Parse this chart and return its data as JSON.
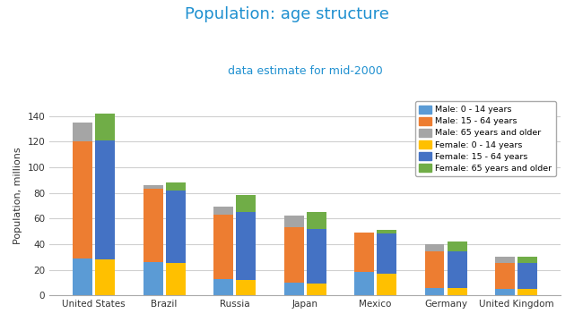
{
  "title": "Population: age structure",
  "subtitle": "data estimate for mid-2000",
  "ylabel": "Population, millions",
  "countries": [
    "United States",
    "Brazil",
    "Russia",
    "Japan",
    "Mexico",
    "Germany",
    "United Kingdom"
  ],
  "male": {
    "0_14": [
      29,
      26,
      13,
      10,
      18,
      6,
      5
    ],
    "15_64": [
      91,
      57,
      50,
      43,
      31,
      28,
      20
    ],
    "65plus": [
      15,
      3,
      6,
      9,
      0,
      6,
      5
    ]
  },
  "female": {
    "0_14": [
      28,
      25,
      12,
      9,
      17,
      6,
      5
    ],
    "15_64": [
      93,
      57,
      53,
      43,
      31,
      28,
      20
    ],
    "65plus": [
      21,
      6,
      13,
      13,
      3,
      8,
      5
    ]
  },
  "colors": {
    "male_0_14": "#5B9BD5",
    "male_15_64": "#ED7D31",
    "male_65plus": "#A5A5A5",
    "female_0_14": "#FFC000",
    "female_15_64": "#4472C4",
    "female_65plus": "#70AD47"
  },
  "legend_labels": [
    "Male: 0 - 14 years",
    "Male: 15 - 64 years",
    "Male: 65 years and older",
    "Female: 0 - 14 years",
    "Female: 15 - 64 years",
    "Female: 65 years and older"
  ],
  "ylim": [
    0,
    155
  ],
  "yticks": [
    0,
    20,
    40,
    60,
    80,
    100,
    120,
    140
  ],
  "title_color": "#1F90D0",
  "subtitle_color": "#1F90D0",
  "background_color": "#FFFFFF",
  "plot_bg_color": "#FFFFFF",
  "grid_color": "#D0D0D0",
  "bar_width": 0.28,
  "bar_gap": 0.04
}
